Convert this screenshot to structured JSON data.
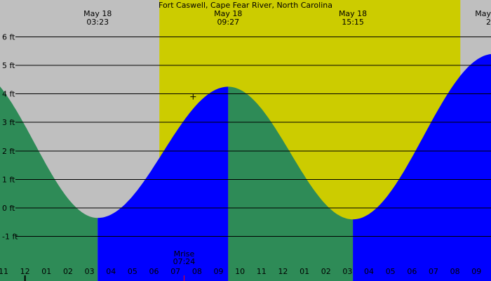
{
  "chart_data": {
    "type": "area",
    "title": "Fort Caswell, Cape Fear River, North Carolina",
    "xlabel": "",
    "ylabel": "",
    "units": "ft",
    "x_unit": "hours since 11:00 (May 17)",
    "xlim": [
      0.0,
      22.8
    ],
    "ylim": [
      -1.9,
      6.3
    ],
    "y_ticks": [
      6,
      5,
      4,
      3,
      2,
      1,
      0,
      -1
    ],
    "y_tick_labels": [
      "6 ft",
      "5 ft",
      "4 ft",
      "3 ft",
      "2 ft",
      "1 ft",
      "0 ft",
      "-1 ft"
    ],
    "x_ticks": [
      0,
      1,
      2,
      3,
      4,
      5,
      6,
      7,
      8,
      9,
      10,
      11,
      12,
      13,
      14,
      15,
      16,
      17,
      18,
      19,
      20,
      21,
      22
    ],
    "x_tick_labels": [
      "11",
      "12",
      "01",
      "02",
      "03",
      "04",
      "05",
      "06",
      "07",
      "08",
      "09",
      "10",
      "11",
      "12",
      "01",
      "02",
      "03",
      "04",
      "05",
      "06",
      "07",
      "08",
      "09"
    ],
    "daylight": {
      "start": 7.25,
      "end": 21.25
    },
    "grid": true,
    "extremes": [
      {
        "date": "May 18",
        "time": "03:23",
        "x": 4.38,
        "height": -0.35,
        "kind": "low"
      },
      {
        "date": "May 18",
        "time": "09:27",
        "x": 10.45,
        "height": 4.25,
        "kind": "high"
      },
      {
        "date": "May 18",
        "time": "15:15",
        "x": 16.25,
        "height": -0.4,
        "kind": "low"
      },
      {
        "date": "May",
        "time": "2",
        "x": 22.8,
        "height": 5.4,
        "kind": "high"
      }
    ],
    "series": [
      {
        "name": "falling",
        "color": "#2e8b57",
        "segments": [
          [
            -1.5,
            4.38
          ],
          [
            10.45,
            16.25
          ]
        ]
      },
      {
        "name": "rising",
        "color": "#0000ff",
        "segments": [
          [
            4.38,
            10.45
          ],
          [
            16.25,
            23.5
          ]
        ]
      }
    ],
    "moonrise": {
      "label": "Mrise",
      "time": "07:24",
      "x": 8.4
    },
    "current_marker": {
      "x": 8.82,
      "height": 3.9
    }
  },
  "colors": {
    "night": "#bfbfbf",
    "day": "#cccc00",
    "grid": "#000000"
  }
}
